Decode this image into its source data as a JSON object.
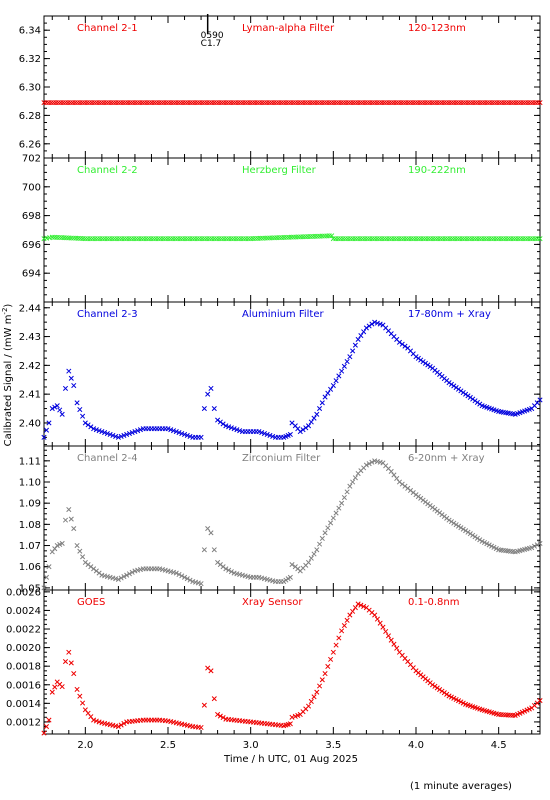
{
  "footnote": "(1 minute averages)",
  "shared_axes": {
    "xlabel": "Time / h UTC, 01 Aug 2025",
    "ylabel": "Calibrated Signal / (mW m",
    "ylabel_sup": "-2",
    "ylabel_close": ")",
    "xlim": [
      1.75,
      4.75
    ],
    "xticks": [
      "2.0",
      "2.5",
      "3.0",
      "3.5",
      "4.0",
      "4.5"
    ]
  },
  "chart_data": [
    {
      "type": "scatter",
      "channel": "Channel 2-1",
      "filter": "Lyman-alpha Filter",
      "band": "120-123nm",
      "color": "#ee0000",
      "ylim": [
        6.25,
        6.35
      ],
      "yticks": [
        "6.26",
        "6.28",
        "6.30",
        "6.32",
        "6.34"
      ],
      "markers": [
        {
          "x": 2.74,
          "label1": "0590",
          "label2": "C1.7"
        }
      ],
      "series": [
        {
          "x": [
            1.75,
            4.75
          ],
          "values": [
            6.289,
            6.289
          ]
        }
      ]
    },
    {
      "type": "scatter",
      "channel": "Channel 2-2",
      "filter": "Herzberg Filter",
      "band": "190-222nm",
      "color": "#33ee33",
      "ylim": [
        692.0,
        702.0
      ],
      "yticks": [
        "694",
        "696",
        "698",
        "700",
        "702"
      ],
      "series": [
        {
          "x": [
            1.75,
            1.8,
            2.0,
            2.5,
            3.0,
            3.49,
            3.5,
            4.0,
            4.5,
            4.75
          ],
          "values": [
            696.4,
            696.5,
            696.4,
            696.4,
            696.4,
            696.6,
            696.4,
            696.4,
            696.4,
            696.4
          ]
        }
      ]
    },
    {
      "type": "scatter",
      "channel": "Channel 2-3",
      "filter": "Aluminium Filter",
      "band": "17-80nm + Xray",
      "color": "#0000dd",
      "ylim": [
        2.392,
        2.442
      ],
      "yticks": [
        "2.40",
        "2.41",
        "2.42",
        "2.43",
        "2.44"
      ],
      "series": [
        {
          "x": [
            1.75,
            1.78,
            1.8,
            1.83,
            1.86,
            1.88,
            1.9,
            1.93,
            1.95,
            2.0,
            2.05,
            2.1,
            2.15,
            2.2,
            2.25,
            2.3,
            2.35,
            2.4,
            2.45,
            2.5,
            2.55,
            2.6,
            2.65,
            2.7,
            2.72,
            2.74,
            2.76,
            2.78,
            2.8,
            2.85,
            2.9,
            2.95,
            3.0,
            3.05,
            3.1,
            3.15,
            3.2,
            3.24,
            3.25,
            3.27,
            3.3,
            3.35,
            3.4,
            3.45,
            3.5,
            3.55,
            3.6,
            3.65,
            3.7,
            3.75,
            3.8,
            3.85,
            3.9,
            3.95,
            4.0,
            4.1,
            4.2,
            4.3,
            4.4,
            4.5,
            4.6,
            4.7,
            4.75
          ],
          "values": [
            2.395,
            2.4,
            2.405,
            2.406,
            2.403,
            2.412,
            2.418,
            2.413,
            2.407,
            2.4,
            2.398,
            2.397,
            2.396,
            2.395,
            2.396,
            2.397,
            2.398,
            2.398,
            2.398,
            2.398,
            2.397,
            2.396,
            2.395,
            2.395,
            2.405,
            2.41,
            2.412,
            2.405,
            2.401,
            2.399,
            2.398,
            2.397,
            2.397,
            2.397,
            2.396,
            2.395,
            2.395,
            2.396,
            2.4,
            2.399,
            2.397,
            2.399,
            2.403,
            2.409,
            2.413,
            2.418,
            2.423,
            2.429,
            2.433,
            2.435,
            2.434,
            2.431,
            2.428,
            2.426,
            2.423,
            2.419,
            2.414,
            2.41,
            2.406,
            2.404,
            2.403,
            2.405,
            2.408
          ]
        }
      ]
    },
    {
      "type": "scatter",
      "channel": "Channel 2-4",
      "filter": "Zirconium Filter",
      "band": "6-20nm + Xray",
      "color": "#808080",
      "ylim": [
        1.049,
        1.117
      ],
      "yticks": [
        "1.05",
        "1.06",
        "1.07",
        "1.08",
        "1.09",
        "1.10",
        "1.11"
      ],
      "series": [
        {
          "x": [
            1.75,
            1.78,
            1.8,
            1.83,
            1.86,
            1.88,
            1.9,
            1.93,
            1.95,
            2.0,
            2.05,
            2.1,
            2.15,
            2.2,
            2.25,
            2.3,
            2.35,
            2.4,
            2.45,
            2.5,
            2.55,
            2.6,
            2.65,
            2.7,
            2.72,
            2.74,
            2.76,
            2.78,
            2.8,
            2.85,
            2.9,
            2.95,
            3.0,
            3.05,
            3.1,
            3.15,
            3.2,
            3.24,
            3.25,
            3.27,
            3.3,
            3.35,
            3.4,
            3.45,
            3.5,
            3.55,
            3.6,
            3.65,
            3.7,
            3.75,
            3.8,
            3.85,
            3.9,
            3.95,
            4.0,
            4.1,
            4.2,
            4.3,
            4.4,
            4.5,
            4.6,
            4.7,
            4.75
          ],
          "values": [
            1.05,
            1.06,
            1.067,
            1.07,
            1.071,
            1.082,
            1.087,
            1.078,
            1.07,
            1.062,
            1.059,
            1.056,
            1.055,
            1.054,
            1.056,
            1.058,
            1.059,
            1.059,
            1.059,
            1.058,
            1.057,
            1.055,
            1.053,
            1.052,
            1.068,
            1.078,
            1.076,
            1.068,
            1.062,
            1.059,
            1.057,
            1.056,
            1.055,
            1.055,
            1.054,
            1.053,
            1.053,
            1.055,
            1.061,
            1.06,
            1.058,
            1.062,
            1.068,
            1.076,
            1.083,
            1.09,
            1.098,
            1.104,
            1.108,
            1.11,
            1.109,
            1.105,
            1.1,
            1.097,
            1.094,
            1.088,
            1.082,
            1.077,
            1.072,
            1.068,
            1.067,
            1.069,
            1.071
          ]
        }
      ]
    },
    {
      "type": "scatter",
      "channel": "GOES",
      "filter": "Xray Sensor",
      "band": "0.1-0.8nm",
      "color": "#ee0000",
      "ylim": [
        0.00107,
        0.00262
      ],
      "yticks": [
        "0.0012",
        "0.0014",
        "0.0016",
        "0.0018",
        "0.0020",
        "0.0022",
        "0.0024",
        "0.0026"
      ],
      "series": [
        {
          "x": [
            1.75,
            1.78,
            1.8,
            1.83,
            1.86,
            1.88,
            1.9,
            1.93,
            1.95,
            2.0,
            2.05,
            2.1,
            2.15,
            2.2,
            2.25,
            2.3,
            2.35,
            2.4,
            2.45,
            2.5,
            2.55,
            2.6,
            2.65,
            2.7,
            2.72,
            2.74,
            2.76,
            2.78,
            2.8,
            2.85,
            2.9,
            2.95,
            3.0,
            3.05,
            3.1,
            3.15,
            3.2,
            3.24,
            3.25,
            3.27,
            3.3,
            3.35,
            3.4,
            3.45,
            3.5,
            3.55,
            3.6,
            3.65,
            3.7,
            3.75,
            3.8,
            3.85,
            3.9,
            3.95,
            4.0,
            4.1,
            4.2,
            4.3,
            4.4,
            4.5,
            4.6,
            4.7,
            4.75
          ],
          "values": [
            0.00108,
            0.00122,
            0.00152,
            0.00163,
            0.00158,
            0.00185,
            0.00195,
            0.00172,
            0.00155,
            0.00133,
            0.00122,
            0.00119,
            0.00117,
            0.00115,
            0.0012,
            0.00121,
            0.00122,
            0.00122,
            0.00122,
            0.00121,
            0.00119,
            0.00117,
            0.00115,
            0.00114,
            0.00138,
            0.00178,
            0.00175,
            0.00145,
            0.00128,
            0.00123,
            0.00122,
            0.00121,
            0.0012,
            0.00119,
            0.00118,
            0.00117,
            0.00116,
            0.00118,
            0.00125,
            0.00126,
            0.00128,
            0.00137,
            0.00152,
            0.00172,
            0.00195,
            0.00218,
            0.00235,
            0.00247,
            0.00243,
            0.00235,
            0.00222,
            0.00208,
            0.00195,
            0.00185,
            0.00175,
            0.0016,
            0.00148,
            0.00139,
            0.00133,
            0.00128,
            0.00127,
            0.00135,
            0.00143
          ]
        }
      ]
    }
  ]
}
